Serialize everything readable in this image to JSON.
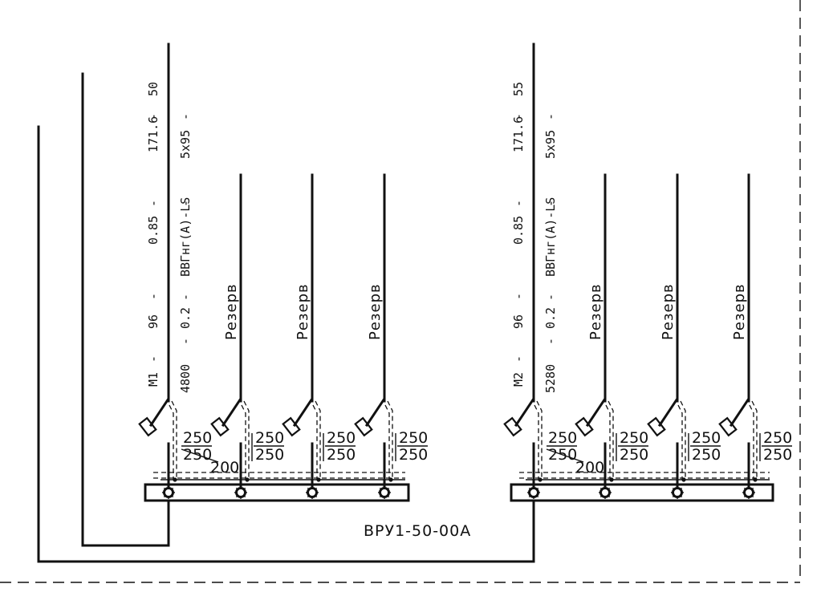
{
  "panel": {
    "name": "ВРУ1-50-00А"
  },
  "sections": [
    {
      "feeder_label": "М1",
      "feeder_specs": [
        "96",
        "0.85",
        "171.6",
        "50"
      ],
      "cable_specs": [
        "4800",
        "0.2",
        "ВВГнг(А)-LS",
        "5х95"
      ],
      "main_rating": {
        "top": "250",
        "bottom": "250"
      },
      "breaker_current": "200",
      "reserves": [
        {
          "label": "Резерв",
          "rating_top": "250",
          "rating_bottom": "250"
        },
        {
          "label": "Резерв",
          "rating_top": "250",
          "rating_bottom": "250"
        },
        {
          "label": "Резерв",
          "rating_top": "250",
          "rating_bottom": "250"
        }
      ]
    },
    {
      "feeder_label": "М2",
      "feeder_specs": [
        "96",
        "0.85",
        "171.6",
        "55"
      ],
      "cable_specs": [
        "5280",
        "0.2",
        "ВВГнг(А)-LS",
        "5х95"
      ],
      "main_rating": {
        "top": "250",
        "bottom": "250"
      },
      "breaker_current": "200",
      "reserves": [
        {
          "label": "Резерв",
          "rating_top": "250",
          "rating_bottom": "250"
        },
        {
          "label": "Резерв",
          "rating_top": "250",
          "rating_bottom": "250"
        },
        {
          "label": "Резерв",
          "rating_top": "250",
          "rating_bottom": "250"
        }
      ]
    }
  ]
}
